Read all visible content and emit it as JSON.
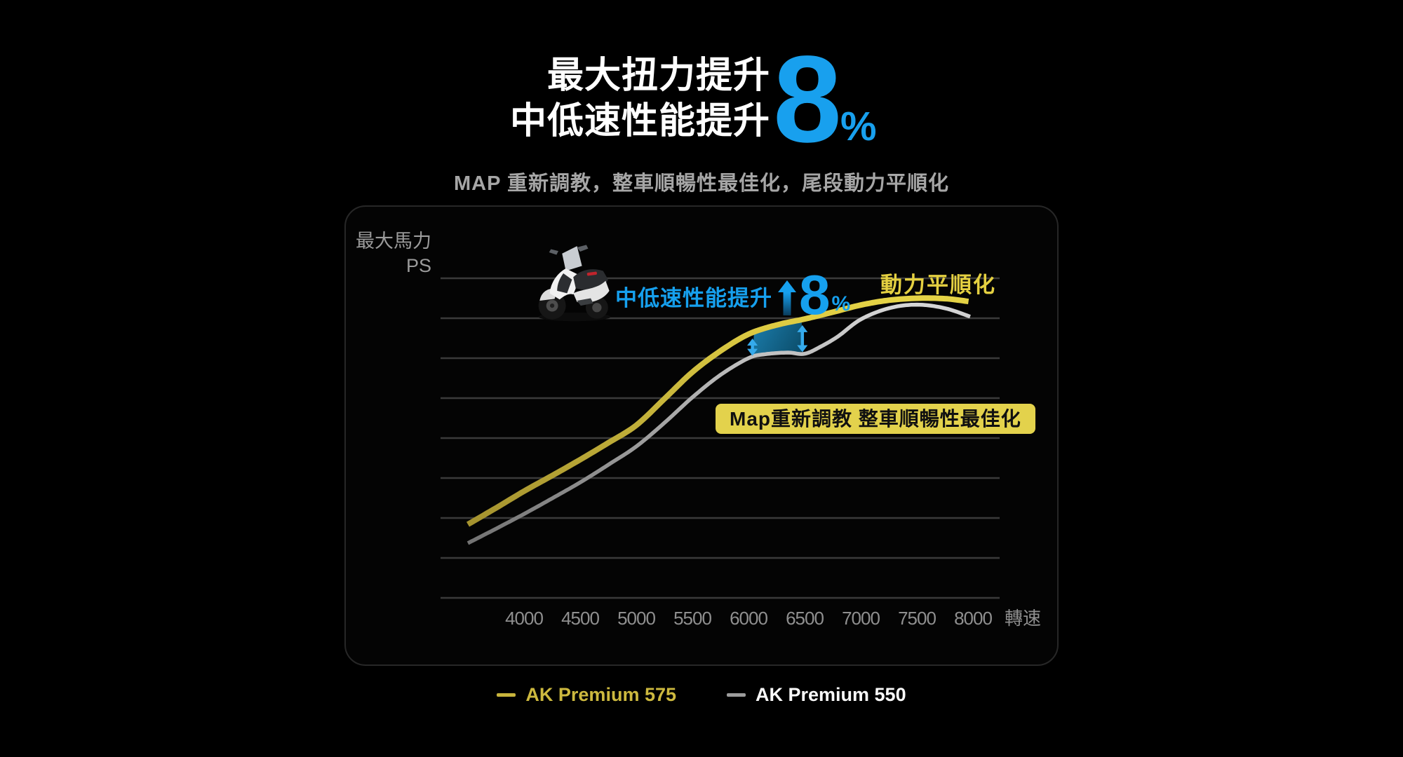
{
  "header": {
    "title_line1": "最大扭力提升",
    "title_line2": "中低速性能提升",
    "highlight_value": "8",
    "highlight_unit": "%",
    "highlight_color": "#18a0ee",
    "subtitle": "MAP 重新調教，整車順暢性最佳化，尾段動力平順化"
  },
  "chart_data": {
    "type": "line",
    "title": "",
    "xlabel": "轉速",
    "ylabel_line1": "最大馬力",
    "ylabel_line2": "PS",
    "x_ticks": [
      "4000",
      "4500",
      "5000",
      "5500",
      "6000",
      "6500",
      "7000",
      "7500",
      "8000"
    ],
    "x_range": [
      3500,
      8000
    ],
    "ylim": [
      0,
      9
    ],
    "gridline_count": 8,
    "grid": true,
    "y_note": "y values are relative units read from unlabeled gridlines (1 unit = 1 gridline step)",
    "series": [
      {
        "name": "AK Premium 575",
        "color": "#d6c33e",
        "x": [
          3500,
          3750,
          4000,
          4250,
          4500,
          4750,
          5000,
          5250,
          5500,
          5750,
          6000,
          6250,
          6500,
          6750,
          7000,
          7250,
          7500,
          7750,
          7960
        ],
        "y": [
          1.84,
          2.25,
          2.67,
          3.06,
          3.46,
          3.88,
          4.32,
          4.98,
          5.65,
          6.18,
          6.6,
          6.83,
          6.98,
          7.15,
          7.33,
          7.45,
          7.5,
          7.49,
          7.42
        ]
      },
      {
        "name": "AK Premium 550",
        "color": "#b5b5b5",
        "x": [
          3500,
          3750,
          4000,
          4250,
          4500,
          4750,
          5000,
          5250,
          5500,
          5750,
          6000,
          6150,
          6350,
          6500,
          6650,
          6800,
          7000,
          7250,
          7500,
          7750,
          7975
        ],
        "y": [
          1.37,
          1.73,
          2.1,
          2.49,
          2.89,
          3.33,
          3.79,
          4.38,
          5.02,
          5.58,
          6.0,
          6.1,
          6.14,
          6.11,
          6.3,
          6.55,
          6.97,
          7.25,
          7.34,
          7.25,
          7.04
        ]
      }
    ],
    "highlight_band": {
      "x_from": 6035,
      "x_to": 6480,
      "between": [
        "AK Premium 575",
        "AK Premium 550"
      ],
      "color_from": "#1a7aa8",
      "color_to": "#0b4a66"
    },
    "annotations": {
      "boost_label": {
        "text": "中低速性能提升",
        "value": "8",
        "unit": "%",
        "color": "#16a0ee"
      },
      "smooth_label": {
        "text": "動力平順化",
        "color": "#e4d041"
      },
      "map_box": {
        "text": "Map重新調教  整車順暢性最佳化",
        "bg": "#e3d24c",
        "text_color": "#101010"
      }
    },
    "legend_position": "bottom",
    "legend": [
      {
        "label": "AK Premium 575",
        "color": "#cdb93f"
      },
      {
        "label": "AK Premium 550",
        "color": "#ffffff"
      }
    ]
  }
}
